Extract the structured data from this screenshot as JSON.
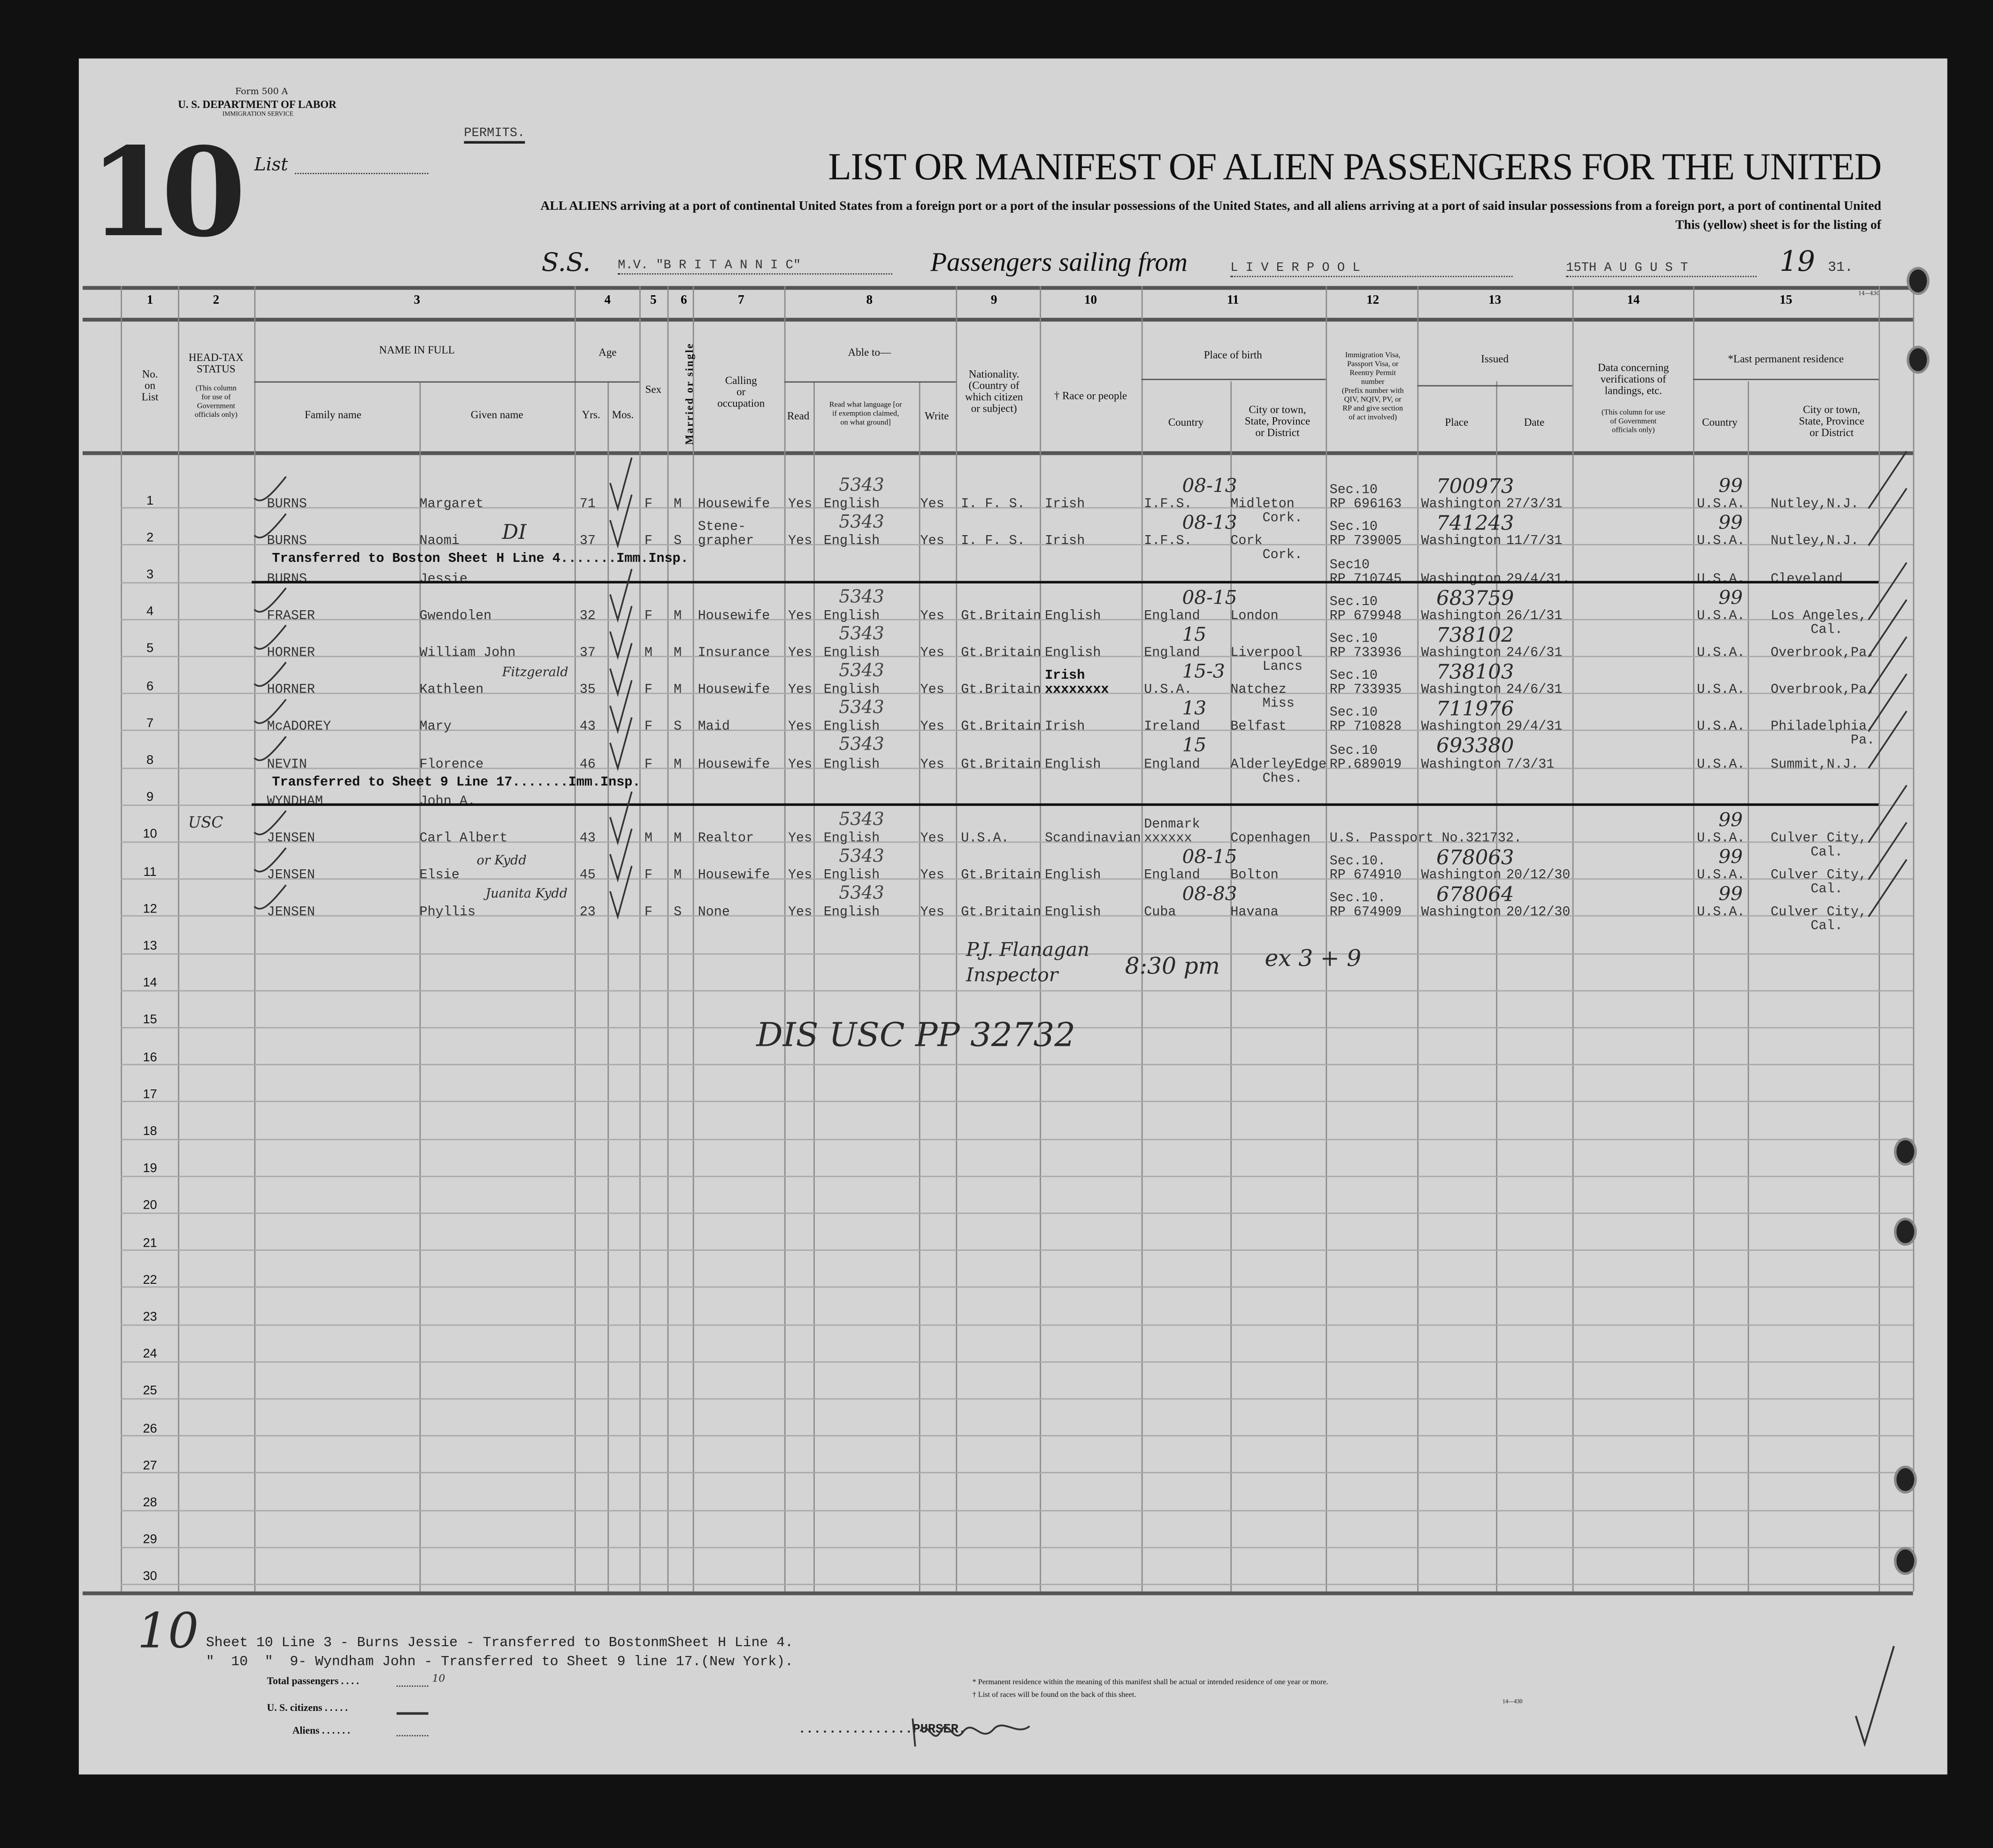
{
  "form": {
    "form_number": "Form 500 A",
    "department": "U. S. DEPARTMENT OF LABOR",
    "service": "IMMIGRATION SERVICE",
    "list_number": "10",
    "list_label": "List",
    "permits_stamp": "PERMITS.",
    "title": "LIST OR MANIFEST OF ALIEN PASSENGERS FOR THE UNITED",
    "instruction": "ALL ALIENS arriving at a port of continental United States from a foreign port or a port of the insular possessions of the United States, and all aliens arriving at a port of said insular possessions from a foreign port, a port of continental United",
    "instruction2": "This (yellow) sheet is for the listing of",
    "ship_prefix": "S.S.",
    "ship_name": "M.V. \"B R I T A N N I C\"",
    "sailing_label": "Passengers sailing from",
    "port": "L I V E R P O O L",
    "date": "15TH A U G U S T",
    "year_prefix": "19",
    "year_suffix": "31.",
    "form_code": "14—430"
  },
  "columns": {
    "numbers": [
      "1",
      "2",
      "3",
      "4",
      "5",
      "6",
      "7",
      "8",
      "9",
      "10",
      "11",
      "12",
      "13",
      "14",
      "15"
    ],
    "no_on_list": "No.\non\nList",
    "head_tax": "HEAD-TAX\nSTATUS",
    "head_tax_note": "(This column\nfor use of\nGovernment\nofficials only)",
    "name_in_full": "NAME IN FULL",
    "family_name": "Family name",
    "given_name": "Given name",
    "age": "Age",
    "yrs": "Yrs.",
    "mos": "Mos.",
    "sex": "Sex",
    "married": "Married or single",
    "calling": "Calling\nor\noccupation",
    "able_to": "Able to—",
    "read": "Read",
    "read_language": "Read what language [or\nif exemption claimed,\non what ground]",
    "write": "Write",
    "nationality": "Nationality.\n(Country of\nwhich citizen\nor subject)",
    "race": "† Race or people",
    "place_of_birth": "Place of birth",
    "birth_country": "Country",
    "birth_city": "City or town,\nState, Province\nor District",
    "visa": "Immigration Visa,\nPassport Visa, or\nReentry Permit\nnumber\n(Prefix number with\nQIV, NQIV, PV, or\nRP and give section\nof act involved)",
    "issued": "Issued",
    "issued_place": "Place",
    "issued_date": "Date",
    "verification": "Data concerning\nverifications of\nlandings, etc.",
    "verification_note": "(This column for use\nof Government\nofficials only)",
    "last_residence": "*Last permanent residence",
    "res_country": "Country",
    "res_city": "City or town,\nState, Province\nor District"
  },
  "rows": [
    {
      "no": "1",
      "family": "BURNS",
      "given": "Margaret",
      "yrs": "71",
      "sex": "F",
      "ms": "M",
      "occ": "Housewife",
      "read": "Yes",
      "lang": "English",
      "write": "Yes",
      "nat": "I. F. S.",
      "race": "Irish",
      "bcountry": "I.F.S.",
      "bcity": "Midleton\n    Cork.",
      "visa": "Sec.10\nRP 696163",
      "place": "Washington",
      "date": "27/3/31",
      "rcountry": "U.S.A.",
      "rcity": "Nutley,N.J."
    },
    {
      "no": "2",
      "family": "BURNS",
      "given": "Naomi",
      "yrs": "37",
      "sex": "F",
      "ms": "S",
      "occ": "Stene-\ngrapher",
      "read": "Yes",
      "lang": "English",
      "write": "Yes",
      "nat": "I. F. S.",
      "race": "Irish",
      "bcountry": "I.F.S.",
      "bcity": "Cork\n    Cork.",
      "visa": "Sec.10\nRP 739005",
      "place": "Washington",
      "date": "11/7/31",
      "rcountry": "U.S.A.",
      "rcity": "Nutley,N.J."
    },
    {
      "no": "3",
      "family": "BURNS",
      "given": "Jessie",
      "visa": "Sec10\nRP 710745",
      "place": "Washington",
      "date": "29/4/31.",
      "rcountry": "U.S.A.",
      "rcity": "Cleveland",
      "struck": true,
      "note": "Transferred to Boston Sheet H Line 4.......Imm.Insp."
    },
    {
      "no": "4",
      "family": "FRASER",
      "given": "Gwendolen",
      "yrs": "32",
      "sex": "F",
      "ms": "M",
      "occ": "Housewife",
      "read": "Yes",
      "lang": "English",
      "write": "Yes",
      "nat": "Gt.Britain",
      "race": "English",
      "bcountry": "England",
      "bcity": "London",
      "visa": "Sec.10\nRP 679948",
      "place": "Washington",
      "date": "26/1/31",
      "rcountry": "U.S.A.",
      "rcity": "Los Angeles,\n     Cal."
    },
    {
      "no": "5",
      "family": "HORNER",
      "given": "William John",
      "yrs": "37",
      "sex": "M",
      "ms": "M",
      "occ": "Insurance",
      "read": "Yes",
      "lang": "English",
      "write": "Yes",
      "nat": "Gt.Britain",
      "race": "English",
      "bcountry": "England",
      "bcity": "Liverpool\n    Lancs",
      "visa": "Sec.10\nRP 733936",
      "place": "Washington",
      "date": "24/6/31",
      "rcountry": "U.S.A.",
      "rcity": "Overbrook,Pa."
    },
    {
      "no": "6",
      "family": "HORNER",
      "given": "Kathleen",
      "yrs": "35",
      "sex": "F",
      "ms": "M",
      "occ": "Housewife",
      "read": "Yes",
      "lang": "English",
      "write": "Yes",
      "nat": "Gt.Britain",
      "race": "Irish\nxxxxxxxx",
      "bcountry": "U.S.A.",
      "bcity": "Natchez\n    Miss",
      "visa": "Sec.10\nRP 733935",
      "place": "Washington",
      "date": "24/6/31",
      "rcountry": "U.S.A.",
      "rcity": "Overbrook,Pa."
    },
    {
      "no": "7",
      "family": "McADOREY",
      "given": "Mary",
      "yrs": "43",
      "sex": "F",
      "ms": "S",
      "occ": "Maid",
      "read": "Yes",
      "lang": "English",
      "write": "Yes",
      "nat": "Gt.Britain",
      "race": "Irish",
      "bcountry": "Ireland",
      "bcity": "Belfast",
      "visa": "Sec.10\nRP 710828",
      "place": "Washington",
      "date": "29/4/31",
      "rcountry": "U.S.A.",
      "rcity": "Philadelphia,\n          Pa."
    },
    {
      "no": "8",
      "family": "NEVIN",
      "given": "Florence",
      "yrs": "46",
      "sex": "F",
      "ms": "M",
      "occ": "Housewife",
      "read": "Yes",
      "lang": "English",
      "write": "Yes",
      "nat": "Gt.Britain",
      "race": "English",
      "bcountry": "England",
      "bcity": "AlderleyEdge\n    Ches.",
      "visa": "Sec.10\nRP.689019",
      "place": "Washington",
      "date": "7/3/31",
      "rcountry": "U.S.A.",
      "rcity": "Summit,N.J."
    },
    {
      "no": "9",
      "family": "WYNDHAM",
      "given": "John A.",
      "struck": true,
      "note": "Transferred to Sheet 9 Line 17.......Imm.Insp."
    },
    {
      "no": "10",
      "family": "JENSEN",
      "given": "Carl Albert",
      "yrs": "43",
      "sex": "M",
      "ms": "M",
      "occ": "Realtor",
      "read": "Yes",
      "lang": "English",
      "write": "Yes",
      "nat": "U.S.A.",
      "race": "Scandinavian",
      "bcountry": "Denmark\nxxxxxx",
      "bcity": "Copenhagen",
      "visa": "U.S. Passport No.321732.",
      "rcountry": "U.S.A.",
      "rcity": "Culver City,\n     Cal."
    },
    {
      "no": "11",
      "family": "JENSEN",
      "given": "Elsie",
      "yrs": "45",
      "sex": "F",
      "ms": "M",
      "occ": "Housewife",
      "read": "Yes",
      "lang": "English",
      "write": "Yes",
      "nat": "Gt.Britain",
      "race": "English",
      "bcountry": "England",
      "bcity": "Bolton",
      "visa": "Sec.10.\nRP 674910",
      "place": "Washington",
      "date": "20/12/30",
      "rcountry": "U.S.A.",
      "rcity": "Culver City,\n     Cal."
    },
    {
      "no": "12",
      "family": "JENSEN",
      "given": "Phyllis",
      "yrs": "23",
      "sex": "F",
      "ms": "S",
      "occ": "None",
      "read": "Yes",
      "lang": "English",
      "write": "Yes",
      "nat": "Gt.Britain",
      "race": "English",
      "bcountry": "Cuba",
      "bcity": "Havana",
      "visa": "Sec.10.\nRP 674909",
      "place": "Washington",
      "date": "20/12/30",
      "rcountry": "U.S.A.",
      "rcity": "Culver City,\n     Cal."
    },
    {
      "no": "13"
    },
    {
      "no": "14"
    },
    {
      "no": "15"
    },
    {
      "no": "16"
    },
    {
      "no": "17"
    },
    {
      "no": "18"
    },
    {
      "no": "19"
    },
    {
      "no": "20"
    },
    {
      "no": "21"
    },
    {
      "no": "22"
    },
    {
      "no": "23"
    },
    {
      "no": "24"
    },
    {
      "no": "25"
    },
    {
      "no": "26"
    },
    {
      "no": "27"
    },
    {
      "no": "28"
    },
    {
      "no": "29"
    },
    {
      "no": "30"
    }
  ],
  "handwritten": {
    "row_codes": [
      "5343",
      "5343",
      "5343",
      "5343",
      "5343",
      "5343",
      "5343",
      "5343",
      "5343",
      "5343"
    ],
    "birth_codes": [
      "08-13",
      "08-13",
      "08-15",
      "15",
      "15-3",
      "13",
      "15",
      "08-15",
      "08-83"
    ],
    "cert_numbers": [
      "700973",
      "741243",
      "683759",
      "738102",
      "738103",
      "711976",
      "693380",
      "678063",
      "678064"
    ],
    "residence_codes": [
      "99",
      "99",
      "99",
      "99",
      "99",
      "99"
    ],
    "fitzgerald": "Fitzgerald",
    "kydd": "or Kydd",
    "juanita": "Juanita Kydd",
    "di": "DI",
    "dis_usc": "DIS USC PP 32732",
    "inspector": "P.J. Flanagan\nInspector",
    "time": "8:30 pm",
    "ex": "ex 3 + 9",
    "usc_margin": "USC",
    "sheet_margin": "10",
    "total_hand": "10"
  },
  "footer": {
    "transfer1": "Sheet 10 Line 3 - Burns Jessie - Transferred to BostonmSheet H Line 4.",
    "transfer2": "\"  10  \"  9- Wyndham John - Transferred to Sheet 9 line 17.(New York).",
    "total_passengers": "Total passengers . . . .",
    "us_citizens": "U. S. citizens . . . . .",
    "aliens": "Aliens . . . . . .",
    "footnote1": "* Permanent residence within the meaning of this manifest shall be actual or intended residence of one year or more.",
    "footnote2": "† List of races will be found on the back of this sheet.",
    "purser": "...............PURSER.",
    "code": "14—430"
  }
}
